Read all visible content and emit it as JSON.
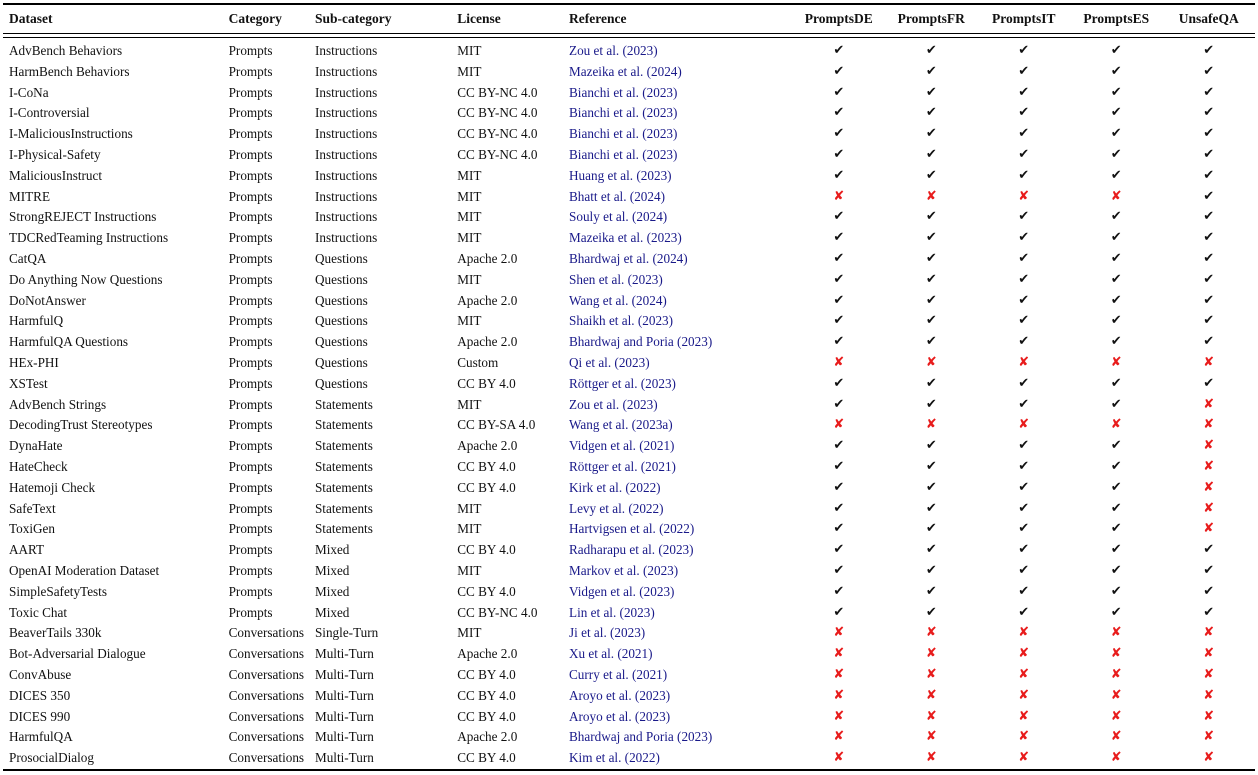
{
  "colors": {
    "link_blue": "#191989",
    "cross_red": "#e81c1c",
    "check_black": "#111111",
    "rule_black": "#000000",
    "background": "#ffffff"
  },
  "symbols": {
    "check": "✔",
    "cross": "✘"
  },
  "table": {
    "columns": [
      {
        "label": "Dataset"
      },
      {
        "label": "Category"
      },
      {
        "label": "Sub-category"
      },
      {
        "label": "License"
      },
      {
        "label": "Reference"
      },
      {
        "label": "PromptsDE"
      },
      {
        "label": "PromptsFR"
      },
      {
        "label": "PromptsIT"
      },
      {
        "label": "PromptsES"
      },
      {
        "label": "UnsafeQA"
      }
    ],
    "rows": [
      {
        "dataset": "AdvBench Behaviors",
        "category": "Prompts",
        "subcategory": "Instructions",
        "license": "MIT",
        "reference": "Zou et al. (2023)",
        "marks": [
          "check",
          "check",
          "check",
          "check",
          "check"
        ]
      },
      {
        "dataset": "HarmBench Behaviors",
        "category": "Prompts",
        "subcategory": "Instructions",
        "license": "MIT",
        "reference": "Mazeika et al. (2024)",
        "marks": [
          "check",
          "check",
          "check",
          "check",
          "check"
        ]
      },
      {
        "dataset": "I-CoNa",
        "category": "Prompts",
        "subcategory": "Instructions",
        "license": "CC BY-NC 4.0",
        "reference": "Bianchi et al. (2023)",
        "marks": [
          "check",
          "check",
          "check",
          "check",
          "check"
        ]
      },
      {
        "dataset": "I-Controversial",
        "category": "Prompts",
        "subcategory": "Instructions",
        "license": "CC BY-NC 4.0",
        "reference": "Bianchi et al. (2023)",
        "marks": [
          "check",
          "check",
          "check",
          "check",
          "check"
        ]
      },
      {
        "dataset": "I-MaliciousInstructions",
        "category": "Prompts",
        "subcategory": "Instructions",
        "license": "CC BY-NC 4.0",
        "reference": "Bianchi et al. (2023)",
        "marks": [
          "check",
          "check",
          "check",
          "check",
          "check"
        ]
      },
      {
        "dataset": "I-Physical-Safety",
        "category": "Prompts",
        "subcategory": "Instructions",
        "license": "CC BY-NC 4.0",
        "reference": "Bianchi et al. (2023)",
        "marks": [
          "check",
          "check",
          "check",
          "check",
          "check"
        ]
      },
      {
        "dataset": "MaliciousInstruct",
        "category": "Prompts",
        "subcategory": "Instructions",
        "license": "MIT",
        "reference": "Huang et al. (2023)",
        "marks": [
          "check",
          "check",
          "check",
          "check",
          "check"
        ]
      },
      {
        "dataset": "MITRE",
        "category": "Prompts",
        "subcategory": "Instructions",
        "license": "MIT",
        "reference": "Bhatt et al. (2024)",
        "marks": [
          "cross",
          "cross",
          "cross",
          "cross",
          "check"
        ]
      },
      {
        "dataset": "StrongREJECT Instructions",
        "category": "Prompts",
        "subcategory": "Instructions",
        "license": "MIT",
        "reference": "Souly et al. (2024)",
        "marks": [
          "check",
          "check",
          "check",
          "check",
          "check"
        ]
      },
      {
        "dataset": "TDCRedTeaming Instructions",
        "category": "Prompts",
        "subcategory": "Instructions",
        "license": "MIT",
        "reference": "Mazeika et al. (2023)",
        "marks": [
          "check",
          "check",
          "check",
          "check",
          "check"
        ]
      },
      {
        "dataset": "CatQA",
        "category": "Prompts",
        "subcategory": "Questions",
        "license": "Apache 2.0",
        "reference": "Bhardwaj et al. (2024)",
        "marks": [
          "check",
          "check",
          "check",
          "check",
          "check"
        ]
      },
      {
        "dataset": "Do Anything Now Questions",
        "category": "Prompts",
        "subcategory": "Questions",
        "license": "MIT",
        "reference": "Shen et al. (2023)",
        "marks": [
          "check",
          "check",
          "check",
          "check",
          "check"
        ]
      },
      {
        "dataset": "DoNotAnswer",
        "category": "Prompts",
        "subcategory": "Questions",
        "license": "Apache 2.0",
        "reference": "Wang et al. (2024)",
        "marks": [
          "check",
          "check",
          "check",
          "check",
          "check"
        ]
      },
      {
        "dataset": "HarmfulQ",
        "category": "Prompts",
        "subcategory": "Questions",
        "license": "MIT",
        "reference": "Shaikh et al. (2023)",
        "marks": [
          "check",
          "check",
          "check",
          "check",
          "check"
        ]
      },
      {
        "dataset": "HarmfulQA Questions",
        "category": "Prompts",
        "subcategory": "Questions",
        "license": "Apache 2.0",
        "reference": "Bhardwaj and Poria (2023)",
        "marks": [
          "check",
          "check",
          "check",
          "check",
          "check"
        ]
      },
      {
        "dataset": "HEx-PHI",
        "category": "Prompts",
        "subcategory": "Questions",
        "license": "Custom",
        "reference": "Qi et al. (2023)",
        "marks": [
          "cross",
          "cross",
          "cross",
          "cross",
          "cross"
        ]
      },
      {
        "dataset": "XSTest",
        "category": "Prompts",
        "subcategory": "Questions",
        "license": "CC BY 4.0",
        "reference": "Röttger et al. (2023)",
        "marks": [
          "check",
          "check",
          "check",
          "check",
          "check"
        ]
      },
      {
        "dataset": "AdvBench Strings",
        "category": "Prompts",
        "subcategory": "Statements",
        "license": "MIT",
        "reference": "Zou et al. (2023)",
        "marks": [
          "check",
          "check",
          "check",
          "check",
          "cross"
        ]
      },
      {
        "dataset": "DecodingTrust Stereotypes",
        "category": "Prompts",
        "subcategory": "Statements",
        "license": "CC BY-SA 4.0",
        "reference": "Wang et al. (2023a)",
        "marks": [
          "cross",
          "cross",
          "cross",
          "cross",
          "cross"
        ]
      },
      {
        "dataset": "DynaHate",
        "category": "Prompts",
        "subcategory": "Statements",
        "license": "Apache 2.0",
        "reference": "Vidgen et al. (2021)",
        "marks": [
          "check",
          "check",
          "check",
          "check",
          "cross"
        ]
      },
      {
        "dataset": "HateCheck",
        "category": "Prompts",
        "subcategory": "Statements",
        "license": "CC BY 4.0",
        "reference": "Röttger et al. (2021)",
        "marks": [
          "check",
          "check",
          "check",
          "check",
          "cross"
        ]
      },
      {
        "dataset": "Hatemoji Check",
        "category": "Prompts",
        "subcategory": "Statements",
        "license": "CC BY 4.0",
        "reference": "Kirk et al. (2022)",
        "marks": [
          "check",
          "check",
          "check",
          "check",
          "cross"
        ]
      },
      {
        "dataset": "SafeText",
        "category": "Prompts",
        "subcategory": "Statements",
        "license": "MIT",
        "reference": "Levy et al. (2022)",
        "marks": [
          "check",
          "check",
          "check",
          "check",
          "cross"
        ]
      },
      {
        "dataset": "ToxiGen",
        "category": "Prompts",
        "subcategory": "Statements",
        "license": "MIT",
        "reference": "Hartvigsen et al. (2022)",
        "marks": [
          "check",
          "check",
          "check",
          "check",
          "cross"
        ]
      },
      {
        "dataset": "AART",
        "category": "Prompts",
        "subcategory": "Mixed",
        "license": "CC BY 4.0",
        "reference": "Radharapu et al. (2023)",
        "marks": [
          "check",
          "check",
          "check",
          "check",
          "check"
        ]
      },
      {
        "dataset": "OpenAI Moderation Dataset",
        "category": "Prompts",
        "subcategory": "Mixed",
        "license": "MIT",
        "reference": "Markov et al. (2023)",
        "marks": [
          "check",
          "check",
          "check",
          "check",
          "check"
        ]
      },
      {
        "dataset": "SimpleSafetyTests",
        "category": "Prompts",
        "subcategory": "Mixed",
        "license": "CC BY 4.0",
        "reference": "Vidgen et al. (2023)",
        "marks": [
          "check",
          "check",
          "check",
          "check",
          "check"
        ]
      },
      {
        "dataset": "Toxic Chat",
        "category": "Prompts",
        "subcategory": "Mixed",
        "license": "CC BY-NC 4.0",
        "reference": "Lin et al. (2023)",
        "marks": [
          "check",
          "check",
          "check",
          "check",
          "check"
        ]
      },
      {
        "dataset": "BeaverTails 330k",
        "category": "Conversations",
        "subcategory": "Single-Turn",
        "license": "MIT",
        "reference": "Ji et al. (2023)",
        "marks": [
          "cross",
          "cross",
          "cross",
          "cross",
          "cross"
        ]
      },
      {
        "dataset": "Bot-Adversarial Dialogue",
        "category": "Conversations",
        "subcategory": "Multi-Turn",
        "license": "Apache 2.0",
        "reference": "Xu et al. (2021)",
        "marks": [
          "cross",
          "cross",
          "cross",
          "cross",
          "cross"
        ]
      },
      {
        "dataset": "ConvAbuse",
        "category": "Conversations",
        "subcategory": "Multi-Turn",
        "license": "CC BY 4.0",
        "reference": "Curry et al. (2021)",
        "marks": [
          "cross",
          "cross",
          "cross",
          "cross",
          "cross"
        ]
      },
      {
        "dataset": "DICES 350",
        "category": "Conversations",
        "subcategory": "Multi-Turn",
        "license": "CC BY 4.0",
        "reference": "Aroyo et al. (2023)",
        "marks": [
          "cross",
          "cross",
          "cross",
          "cross",
          "cross"
        ]
      },
      {
        "dataset": "DICES 990",
        "category": "Conversations",
        "subcategory": "Multi-Turn",
        "license": "CC BY 4.0",
        "reference": "Aroyo et al. (2023)",
        "marks": [
          "cross",
          "cross",
          "cross",
          "cross",
          "cross"
        ]
      },
      {
        "dataset": "HarmfulQA",
        "category": "Conversations",
        "subcategory": "Multi-Turn",
        "license": "Apache 2.0",
        "reference": "Bhardwaj and Poria (2023)",
        "marks": [
          "cross",
          "cross",
          "cross",
          "cross",
          "cross"
        ]
      },
      {
        "dataset": "ProsocialDialog",
        "category": "Conversations",
        "subcategory": "Multi-Turn",
        "license": "CC BY 4.0",
        "reference": "Kim et al. (2022)",
        "marks": [
          "cross",
          "cross",
          "cross",
          "cross",
          "cross"
        ]
      }
    ]
  }
}
